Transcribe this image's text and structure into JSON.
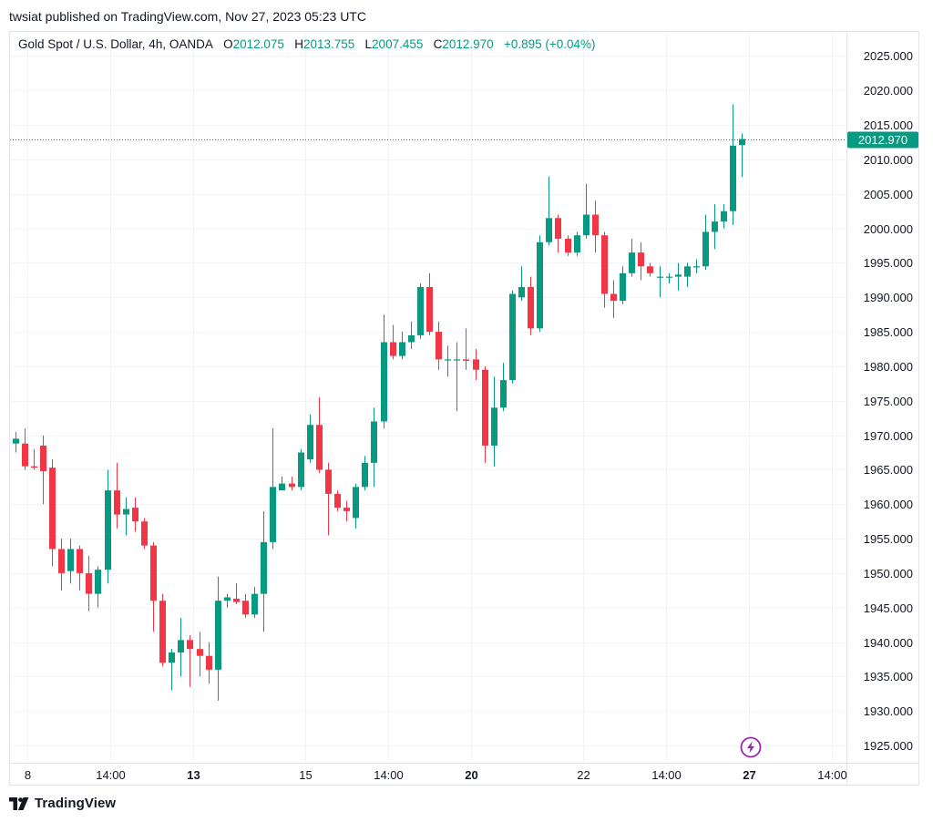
{
  "publish_line": "twsiat published on TradingView.com, Nov 27, 2023 05:23 UTC",
  "legend": {
    "symbol": "Gold Spot / U.S. Dollar, 4h, OANDA",
    "o_label": "O",
    "o_value": "2012.075",
    "h_label": "H",
    "h_value": "2013.755",
    "l_label": "L",
    "l_value": "2007.455",
    "c_label": "C",
    "c_value": "2012.970",
    "change": "+0.895 (+0.04%)"
  },
  "footer": {
    "brand": "TradingView",
    "logo_icon": "tradingview-logo-icon"
  },
  "colors": {
    "up": "#089981",
    "down": "#f23645",
    "grid": "#f0f3fa",
    "axis_text": "#131722"
  },
  "chart_data": {
    "type": "candlestick",
    "title": "",
    "xlabel": "",
    "ylabel": "",
    "ylim": [
      1922.5,
      2028.5
    ],
    "yticks": [
      1925,
      1930,
      1935,
      1940,
      1945,
      1950,
      1955,
      1960,
      1965,
      1970,
      1975,
      1980,
      1985,
      1990,
      1995,
      2000,
      2005,
      2010,
      2015,
      2020,
      2025
    ],
    "ytick_labels": [
      "1925.000",
      "1930.000",
      "1935.000",
      "1940.000",
      "1945.000",
      "1950.000",
      "1955.000",
      "1960.000",
      "1965.000",
      "1970.000",
      "1975.000",
      "1980.000",
      "1985.000",
      "1990.000",
      "1995.000",
      "2000.000",
      "2005.000",
      "2010.000",
      "2015.000",
      "2020.000",
      "2025.000"
    ],
    "xticks": [
      {
        "bar": 1.3,
        "label": "8",
        "bold": false
      },
      {
        "bar": 10.3,
        "label": "14:00",
        "bold": false
      },
      {
        "bar": 19.4,
        "label": "13",
        "bold": true
      },
      {
        "bar": 31.5,
        "label": "15",
        "bold": false
      },
      {
        "bar": 40.5,
        "label": "14:00",
        "bold": false
      },
      {
        "bar": 49.6,
        "label": "20",
        "bold": true
      },
      {
        "bar": 61.7,
        "label": "22",
        "bold": false
      },
      {
        "bar": 70.7,
        "label": "14:00",
        "bold": false
      },
      {
        "bar": 79.8,
        "label": "27",
        "bold": true
      },
      {
        "bar": 88.8,
        "label": "14:00",
        "bold": false
      }
    ],
    "last_price": 2012.97,
    "last_price_label": "2012.970",
    "candles": [
      {
        "o": 1968.8,
        "h": 1970.5,
        "l": 1967.5,
        "c": 1969.5
      },
      {
        "o": 1968.8,
        "h": 1971.0,
        "l": 1965.0,
        "c": 1965.5
      },
      {
        "o": 1965.5,
        "h": 1968.0,
        "l": 1965.0,
        "c": 1965.3
      },
      {
        "o": 1968.5,
        "h": 1970.0,
        "l": 1960.0,
        "c": 1964.8
      },
      {
        "o": 1965.3,
        "h": 1966.5,
        "l": 1951.0,
        "c": 1953.5
      },
      {
        "o": 1953.5,
        "h": 1955.0,
        "l": 1947.5,
        "c": 1950.0
      },
      {
        "o": 1950.3,
        "h": 1955.0,
        "l": 1948.5,
        "c": 1953.5
      },
      {
        "o": 1953.5,
        "h": 1954.0,
        "l": 1947.5,
        "c": 1950.0
      },
      {
        "o": 1950.0,
        "h": 1952.5,
        "l": 1944.5,
        "c": 1947.0
      },
      {
        "o": 1947.0,
        "h": 1951.0,
        "l": 1945.0,
        "c": 1950.5
      },
      {
        "o": 1950.5,
        "h": 1965.0,
        "l": 1948.5,
        "c": 1962.0
      },
      {
        "o": 1962.0,
        "h": 1966.0,
        "l": 1956.5,
        "c": 1958.5
      },
      {
        "o": 1958.5,
        "h": 1961.0,
        "l": 1955.5,
        "c": 1959.3
      },
      {
        "o": 1959.5,
        "h": 1961.0,
        "l": 1956.0,
        "c": 1957.5
      },
      {
        "o": 1957.5,
        "h": 1958.0,
        "l": 1953.5,
        "c": 1954.0
      },
      {
        "o": 1954.0,
        "h": 1954.5,
        "l": 1941.5,
        "c": 1946.0
      },
      {
        "o": 1946.0,
        "h": 1947.0,
        "l": 1936.5,
        "c": 1937.0
      },
      {
        "o": 1937.0,
        "h": 1939.0,
        "l": 1933.0,
        "c": 1938.5
      },
      {
        "o": 1938.5,
        "h": 1943.5,
        "l": 1935.0,
        "c": 1940.3
      },
      {
        "o": 1940.3,
        "h": 1941.0,
        "l": 1933.5,
        "c": 1939.0
      },
      {
        "o": 1939.0,
        "h": 1941.5,
        "l": 1935.0,
        "c": 1938.0
      },
      {
        "o": 1938.0,
        "h": 1940.0,
        "l": 1934.0,
        "c": 1936.0
      },
      {
        "o": 1936.0,
        "h": 1949.5,
        "l": 1931.5,
        "c": 1946.0
      },
      {
        "o": 1946.0,
        "h": 1947.0,
        "l": 1945.0,
        "c": 1946.5
      },
      {
        "o": 1946.3,
        "h": 1948.5,
        "l": 1945.5,
        "c": 1945.8
      },
      {
        "o": 1946.0,
        "h": 1947.0,
        "l": 1943.5,
        "c": 1944.0
      },
      {
        "o": 1944.0,
        "h": 1948.0,
        "l": 1943.5,
        "c": 1947.0
      },
      {
        "o": 1947.0,
        "h": 1959.0,
        "l": 1941.5,
        "c": 1954.5
      },
      {
        "o": 1954.5,
        "h": 1971.0,
        "l": 1953.5,
        "c": 1962.5
      },
      {
        "o": 1962.0,
        "h": 1964.0,
        "l": 1962.0,
        "c": 1963.0
      },
      {
        "o": 1963.0,
        "h": 1964.0,
        "l": 1962.0,
        "c": 1962.5
      },
      {
        "o": 1962.5,
        "h": 1968.0,
        "l": 1962.0,
        "c": 1967.5
      },
      {
        "o": 1966.5,
        "h": 1973.0,
        "l": 1966.0,
        "c": 1971.5
      },
      {
        "o": 1971.5,
        "h": 1975.5,
        "l": 1964.5,
        "c": 1965.0
      },
      {
        "o": 1965.0,
        "h": 1966.0,
        "l": 1955.5,
        "c": 1961.5
      },
      {
        "o": 1961.5,
        "h": 1962.0,
        "l": 1959.0,
        "c": 1959.5
      },
      {
        "o": 1959.5,
        "h": 1960.5,
        "l": 1957.5,
        "c": 1959.0
      },
      {
        "o": 1958.0,
        "h": 1963.0,
        "l": 1956.5,
        "c": 1962.5
      },
      {
        "o": 1962.5,
        "h": 1967.0,
        "l": 1962.0,
        "c": 1966.0
      },
      {
        "o": 1966.0,
        "h": 1974.0,
        "l": 1962.5,
        "c": 1972.0
      },
      {
        "o": 1972.0,
        "h": 1987.5,
        "l": 1971.0,
        "c": 1983.5
      },
      {
        "o": 1983.5,
        "h": 1986.0,
        "l": 1981.0,
        "c": 1981.5
      },
      {
        "o": 1981.5,
        "h": 1985.0,
        "l": 1981.0,
        "c": 1983.5
      },
      {
        "o": 1983.5,
        "h": 1986.5,
        "l": 1982.5,
        "c": 1984.5
      },
      {
        "o": 1984.5,
        "h": 1992.0,
        "l": 1984.0,
        "c": 1991.5
      },
      {
        "o": 1991.5,
        "h": 1993.5,
        "l": 1984.5,
        "c": 1985.0
      },
      {
        "o": 1985.0,
        "h": 1986.5,
        "l": 1979.5,
        "c": 1981.0
      },
      {
        "o": 1981.0,
        "h": 1983.0,
        "l": 1978.5,
        "c": 1981.0
      },
      {
        "o": 1981.0,
        "h": 1983.5,
        "l": 1973.5,
        "c": 1981.0
      },
      {
        "o": 1981.0,
        "h": 1985.5,
        "l": 1979.5,
        "c": 1980.8
      },
      {
        "o": 1981.0,
        "h": 1982.5,
        "l": 1978.0,
        "c": 1979.5
      },
      {
        "o": 1979.5,
        "h": 1980.0,
        "l": 1966.0,
        "c": 1968.5
      },
      {
        "o": 1968.5,
        "h": 1978.5,
        "l": 1965.5,
        "c": 1974.0
      },
      {
        "o": 1974.0,
        "h": 1980.5,
        "l": 1973.5,
        "c": 1978.0
      },
      {
        "o": 1978.0,
        "h": 1991.0,
        "l": 1977.5,
        "c": 1990.5
      },
      {
        "o": 1990.0,
        "h": 1994.5,
        "l": 1989.5,
        "c": 1991.5
      },
      {
        "o": 1991.5,
        "h": 1993.0,
        "l": 1984.5,
        "c": 1985.5
      },
      {
        "o": 1985.5,
        "h": 1999.0,
        "l": 1985.0,
        "c": 1998.0
      },
      {
        "o": 1998.0,
        "h": 2007.5,
        "l": 1997.5,
        "c": 2001.5
      },
      {
        "o": 2001.5,
        "h": 2002.0,
        "l": 1996.5,
        "c": 1998.5
      },
      {
        "o": 1998.5,
        "h": 1999.0,
        "l": 1996.0,
        "c": 1996.5
      },
      {
        "o": 1996.5,
        "h": 1999.5,
        "l": 1996.0,
        "c": 1999.0
      },
      {
        "o": 1999.0,
        "h": 2006.5,
        "l": 1998.5,
        "c": 2002.0
      },
      {
        "o": 2002.0,
        "h": 2004.0,
        "l": 1996.5,
        "c": 1999.0
      },
      {
        "o": 1999.0,
        "h": 1999.5,
        "l": 1988.5,
        "c": 1990.5
      },
      {
        "o": 1990.5,
        "h": 1992.5,
        "l": 1987.0,
        "c": 1989.5
      },
      {
        "o": 1989.5,
        "h": 1994.5,
        "l": 1989.0,
        "c": 1993.5
      },
      {
        "o": 1993.5,
        "h": 1998.5,
        "l": 1993.0,
        "c": 1996.5
      },
      {
        "o": 1996.5,
        "h": 1998.0,
        "l": 1992.5,
        "c": 1994.5
      },
      {
        "o": 1994.5,
        "h": 1995.0,
        "l": 1993.0,
        "c": 1993.5
      },
      {
        "o": 1993.0,
        "h": 1994.5,
        "l": 1990.0,
        "c": 1993.0
      },
      {
        "o": 1993.0,
        "h": 1993.5,
        "l": 1992.0,
        "c": 1993.0
      },
      {
        "o": 1993.0,
        "h": 1995.0,
        "l": 1991.0,
        "c": 1993.3
      },
      {
        "o": 1993.0,
        "h": 1995.0,
        "l": 1991.5,
        "c": 1994.5
      },
      {
        "o": 1994.5,
        "h": 1995.5,
        "l": 1993.5,
        "c": 1994.5
      },
      {
        "o": 1994.5,
        "h": 2002.0,
        "l": 1994.0,
        "c": 1999.5
      },
      {
        "o": 1999.5,
        "h": 2003.5,
        "l": 1997.0,
        "c": 2001.0
      },
      {
        "o": 2001.0,
        "h": 2003.5,
        "l": 2000.0,
        "c": 2002.5
      },
      {
        "o": 2002.5,
        "h": 2018.0,
        "l": 2000.5,
        "c": 2012.0
      },
      {
        "o": 2012.075,
        "h": 2013.755,
        "l": 2007.455,
        "c": 2012.97
      }
    ]
  }
}
